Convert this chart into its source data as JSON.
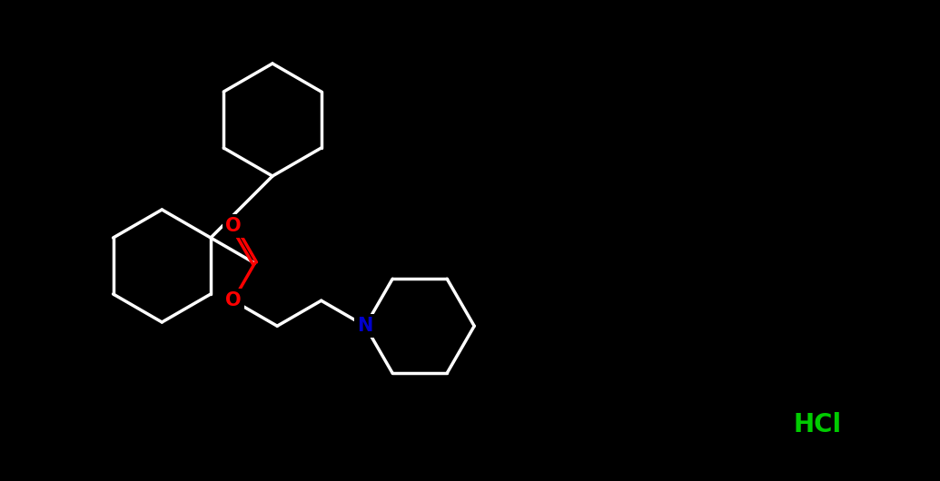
{
  "background_color": "#000000",
  "line_color": "#ffffff",
  "O_color": "#FF0000",
  "N_color": "#0000CC",
  "HCl_color": "#00CC00",
  "line_width": 2.5,
  "figsize": [
    10.35,
    5.3
  ],
  "dpi": 100,
  "HCl_text": "HCl",
  "N_text": "N",
  "O_text": "O"
}
